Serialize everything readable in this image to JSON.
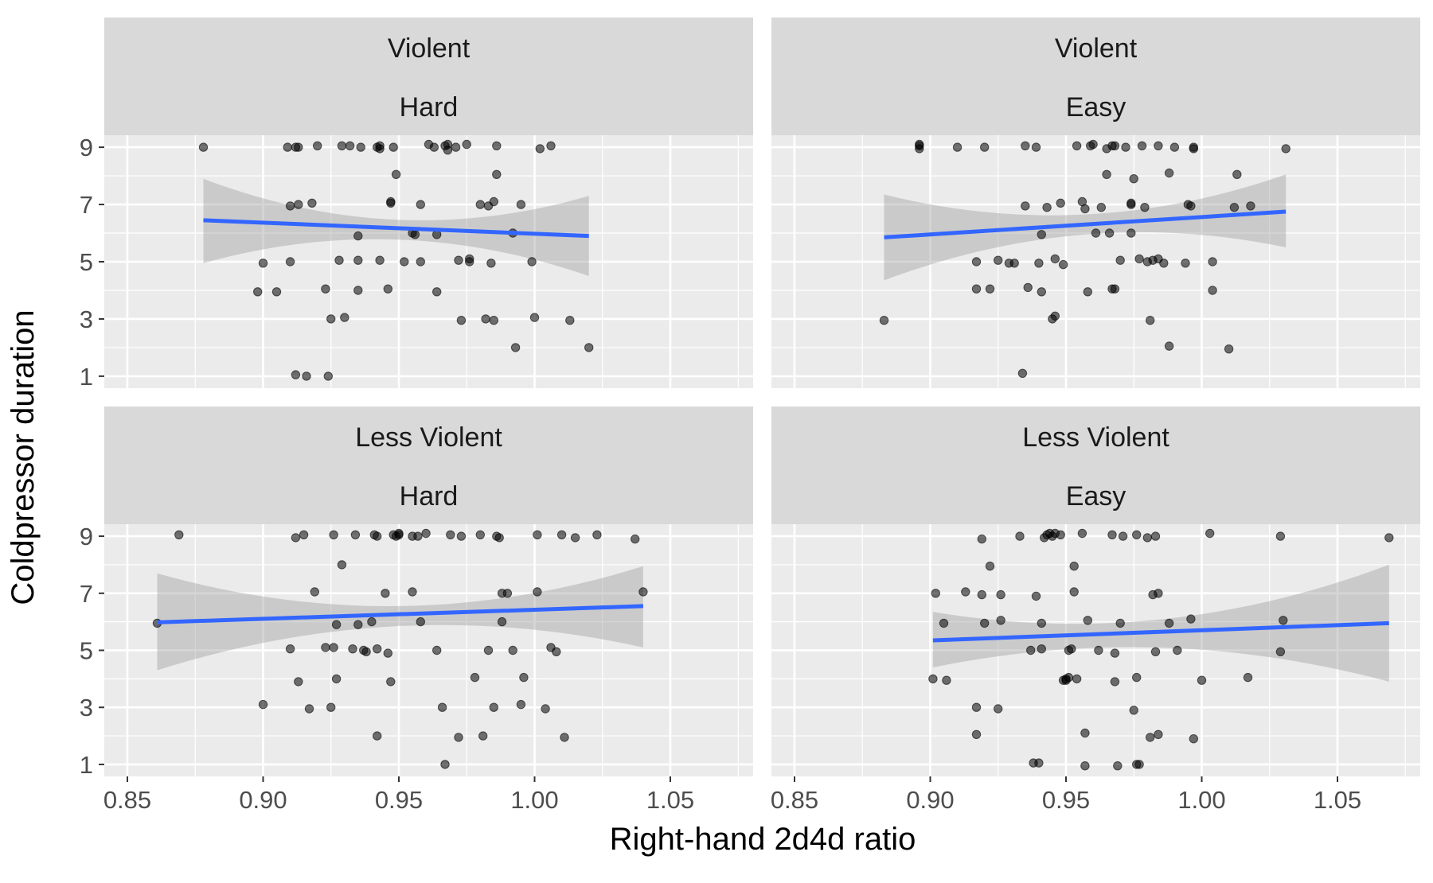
{
  "chart_data": {
    "type": "scatter",
    "xlabel": "Right-hand 2d4d ratio",
    "ylabel": "Coldpressor duration",
    "x_ticks": [
      "0.85",
      "0.90",
      "0.95",
      "1.00",
      "1.05"
    ],
    "x_tick_values": [
      0.85,
      0.9,
      0.95,
      1.0,
      1.05
    ],
    "y_ticks": [
      "1",
      "3",
      "5",
      "7",
      "9"
    ],
    "y_tick_values": [
      1,
      3,
      5,
      7,
      9
    ],
    "xlim": [
      0.8415,
      1.0805
    ],
    "ylim": [
      0.58,
      9.42
    ],
    "grid": true,
    "panels": [
      {
        "strip_top": "Violent",
        "strip_bottom": "Hard",
        "fit": {
          "x0": 0.878,
          "y0": 6.45,
          "x1": 1.02,
          "y1": 5.9,
          "lower0": 4.95,
          "upper0": 7.9,
          "lower_mid": 5.75,
          "upper_mid": 6.45,
          "x_mid": 0.955,
          "lower1": 4.5,
          "upper1": 7.3
        },
        "points": [
          [
            0.878,
            9.0
          ],
          [
            0.9,
            4.95
          ],
          [
            0.898,
            3.95
          ],
          [
            0.905,
            3.95
          ],
          [
            0.909,
            9.0
          ],
          [
            0.91,
            5.0
          ],
          [
            0.91,
            6.95
          ],
          [
            0.912,
            9.0
          ],
          [
            0.913,
            7.0
          ],
          [
            0.912,
            1.05
          ],
          [
            0.913,
            9.0
          ],
          [
            0.916,
            1.0
          ],
          [
            0.918,
            7.05
          ],
          [
            0.92,
            9.05
          ],
          [
            0.923,
            4.05
          ],
          [
            0.924,
            1.0
          ],
          [
            0.925,
            3.0
          ],
          [
            0.928,
            5.05
          ],
          [
            0.929,
            9.05
          ],
          [
            0.93,
            3.05
          ],
          [
            0.932,
            9.05
          ],
          [
            0.935,
            4.0
          ],
          [
            0.935,
            5.9
          ],
          [
            0.936,
            9.0
          ],
          [
            0.935,
            5.05
          ],
          [
            0.942,
            9.0
          ],
          [
            0.943,
            9.05
          ],
          [
            0.943,
            5.05
          ],
          [
            0.943,
            8.95
          ],
          [
            0.946,
            4.05
          ],
          [
            0.947,
            7.05
          ],
          [
            0.947,
            7.1
          ],
          [
            0.948,
            9.0
          ],
          [
            0.949,
            8.05
          ],
          [
            0.952,
            5.0
          ],
          [
            0.955,
            6.0
          ],
          [
            0.956,
            5.95
          ],
          [
            0.958,
            7.0
          ],
          [
            0.958,
            5.0
          ],
          [
            0.961,
            9.1
          ],
          [
            0.963,
            9.0
          ],
          [
            0.964,
            3.95
          ],
          [
            0.964,
            5.95
          ],
          [
            0.967,
            9.05
          ],
          [
            0.968,
            9.1
          ],
          [
            0.968,
            8.9
          ],
          [
            0.971,
            9.0
          ],
          [
            0.972,
            5.05
          ],
          [
            0.973,
            2.95
          ],
          [
            0.975,
            9.1
          ],
          [
            0.976,
            5.0
          ],
          [
            0.976,
            5.1
          ],
          [
            0.98,
            7.0
          ],
          [
            0.982,
            3.0
          ],
          [
            0.983,
            6.95
          ],
          [
            0.984,
            4.95
          ],
          [
            0.985,
            7.1
          ],
          [
            0.985,
            2.95
          ],
          [
            0.986,
            9.05
          ],
          [
            0.986,
            8.05
          ],
          [
            0.992,
            6.0
          ],
          [
            0.993,
            2.0
          ],
          [
            0.995,
            7.0
          ],
          [
            0.999,
            5.0
          ],
          [
            1.0,
            3.05
          ],
          [
            1.002,
            8.95
          ],
          [
            1.006,
            9.05
          ],
          [
            1.013,
            2.95
          ],
          [
            1.02,
            2.0
          ]
        ]
      },
      {
        "strip_top": "Violent",
        "strip_bottom": "Easy",
        "fit": {
          "x0": 0.883,
          "y0": 5.85,
          "x1": 1.031,
          "y1": 6.75,
          "lower0": 4.35,
          "upper0": 7.35,
          "lower_mid": 5.95,
          "upper_mid": 6.65,
          "x_mid": 0.957,
          "lower1": 5.5,
          "upper1": 8.05
        },
        "points": [
          [
            0.883,
            2.95
          ],
          [
            0.896,
            9.05
          ],
          [
            0.896,
            9.1
          ],
          [
            0.896,
            8.95
          ],
          [
            0.91,
            9.0
          ],
          [
            0.917,
            5.0
          ],
          [
            0.917,
            4.05
          ],
          [
            0.92,
            9.0
          ],
          [
            0.922,
            4.05
          ],
          [
            0.925,
            5.05
          ],
          [
            0.929,
            4.95
          ],
          [
            0.931,
            4.95
          ],
          [
            0.934,
            1.1
          ],
          [
            0.935,
            9.05
          ],
          [
            0.935,
            6.95
          ],
          [
            0.936,
            4.1
          ],
          [
            0.939,
            9.0
          ],
          [
            0.94,
            4.95
          ],
          [
            0.941,
            3.95
          ],
          [
            0.941,
            5.95
          ],
          [
            0.943,
            6.9
          ],
          [
            0.945,
            3.0
          ],
          [
            0.946,
            3.1
          ],
          [
            0.946,
            5.1
          ],
          [
            0.948,
            7.05
          ],
          [
            0.949,
            4.9
          ],
          [
            0.954,
            9.05
          ],
          [
            0.956,
            7.1
          ],
          [
            0.957,
            6.85
          ],
          [
            0.958,
            3.95
          ],
          [
            0.959,
            9.05
          ],
          [
            0.96,
            9.1
          ],
          [
            0.961,
            6.0
          ],
          [
            0.963,
            6.9
          ],
          [
            0.965,
            8.95
          ],
          [
            0.965,
            8.05
          ],
          [
            0.966,
            6.0
          ],
          [
            0.967,
            9.05
          ],
          [
            0.967,
            4.05
          ],
          [
            0.968,
            4.05
          ],
          [
            0.968,
            9.05
          ],
          [
            0.97,
            5.05
          ],
          [
            0.972,
            9.0
          ],
          [
            0.974,
            7.05
          ],
          [
            0.974,
            6.0
          ],
          [
            0.974,
            7.0
          ],
          [
            0.975,
            7.9
          ],
          [
            0.977,
            5.1
          ],
          [
            0.978,
            9.05
          ],
          [
            0.979,
            6.9
          ],
          [
            0.98,
            5.0
          ],
          [
            0.981,
            2.95
          ],
          [
            0.982,
            5.05
          ],
          [
            0.984,
            9.05
          ],
          [
            0.984,
            5.1
          ],
          [
            0.986,
            4.95
          ],
          [
            0.988,
            8.1
          ],
          [
            0.988,
            2.05
          ],
          [
            0.99,
            9.0
          ],
          [
            0.994,
            4.95
          ],
          [
            0.995,
            7.0
          ],
          [
            0.996,
            6.95
          ],
          [
            0.997,
            8.95
          ],
          [
            0.997,
            9.0
          ],
          [
            1.004,
            4.0
          ],
          [
            1.004,
            5.0
          ],
          [
            1.01,
            1.95
          ],
          [
            1.012,
            6.9
          ],
          [
            1.013,
            8.05
          ],
          [
            1.018,
            6.95
          ],
          [
            1.031,
            8.95
          ]
        ]
      },
      {
        "strip_top": "Less Violent",
        "strip_bottom": "Hard",
        "fit": {
          "x0": 0.861,
          "y0": 5.98,
          "x1": 1.04,
          "y1": 6.55,
          "lower0": 4.3,
          "upper0": 7.7,
          "lower_mid": 5.85,
          "upper_mid": 6.55,
          "x_mid": 0.95,
          "lower1": 5.1,
          "upper1": 7.95
        },
        "points": [
          [
            0.861,
            5.95
          ],
          [
            0.869,
            9.05
          ],
          [
            0.9,
            3.1
          ],
          [
            0.91,
            5.05
          ],
          [
            0.912,
            8.95
          ],
          [
            0.913,
            3.9
          ],
          [
            0.915,
            9.05
          ],
          [
            0.917,
            2.95
          ],
          [
            0.919,
            7.05
          ],
          [
            0.923,
            5.1
          ],
          [
            0.925,
            3.0
          ],
          [
            0.926,
            5.1
          ],
          [
            0.926,
            9.05
          ],
          [
            0.927,
            4.0
          ],
          [
            0.927,
            5.9
          ],
          [
            0.929,
            8.0
          ],
          [
            0.933,
            5.05
          ],
          [
            0.934,
            9.05
          ],
          [
            0.935,
            5.9
          ],
          [
            0.937,
            5.0
          ],
          [
            0.938,
            4.95
          ],
          [
            0.94,
            6.0
          ],
          [
            0.941,
            9.05
          ],
          [
            0.942,
            9.0
          ],
          [
            0.942,
            5.05
          ],
          [
            0.942,
            2.0
          ],
          [
            0.945,
            7.0
          ],
          [
            0.946,
            4.9
          ],
          [
            0.947,
            3.9
          ],
          [
            0.948,
            9.05
          ],
          [
            0.949,
            9.0
          ],
          [
            0.95,
            9.1
          ],
          [
            0.95,
            9.05
          ],
          [
            0.955,
            7.05
          ],
          [
            0.955,
            9.0
          ],
          [
            0.957,
            9.0
          ],
          [
            0.958,
            6.0
          ],
          [
            0.96,
            9.1
          ],
          [
            0.964,
            5.0
          ],
          [
            0.966,
            3.0
          ],
          [
            0.967,
            1.0
          ],
          [
            0.969,
            9.05
          ],
          [
            0.972,
            1.95
          ],
          [
            0.973,
            9.0
          ],
          [
            0.978,
            4.05
          ],
          [
            0.98,
            9.05
          ],
          [
            0.981,
            2.0
          ],
          [
            0.983,
            5.0
          ],
          [
            0.985,
            3.0
          ],
          [
            0.986,
            9.0
          ],
          [
            0.987,
            8.95
          ],
          [
            0.988,
            7.0
          ],
          [
            0.988,
            6.0
          ],
          [
            0.99,
            7.0
          ],
          [
            0.992,
            5.0
          ],
          [
            0.995,
            3.1
          ],
          [
            0.996,
            4.05
          ],
          [
            1.001,
            7.05
          ],
          [
            1.001,
            9.05
          ],
          [
            1.004,
            2.95
          ],
          [
            1.006,
            5.1
          ],
          [
            1.008,
            4.95
          ],
          [
            1.01,
            9.05
          ],
          [
            1.011,
            1.95
          ],
          [
            1.015,
            8.95
          ],
          [
            1.023,
            9.05
          ],
          [
            1.037,
            8.9
          ],
          [
            1.04,
            7.05
          ]
        ]
      },
      {
        "strip_top": "Less Violent",
        "strip_bottom": "Easy",
        "fit": {
          "x0": 0.901,
          "y0": 5.35,
          "x1": 1.069,
          "y1": 5.95,
          "lower0": 4.4,
          "upper0": 6.35,
          "lower_mid": 5.1,
          "upper_mid": 5.95,
          "x_mid": 0.965,
          "lower1": 3.9,
          "upper1": 8.0
        },
        "points": [
          [
            0.901,
            4.0
          ],
          [
            0.902,
            7.0
          ],
          [
            0.905,
            5.95
          ],
          [
            0.906,
            3.95
          ],
          [
            0.913,
            7.05
          ],
          [
            0.917,
            2.05
          ],
          [
            0.917,
            3.0
          ],
          [
            0.919,
            8.9
          ],
          [
            0.919,
            6.95
          ],
          [
            0.92,
            5.95
          ],
          [
            0.922,
            7.95
          ],
          [
            0.925,
            2.95
          ],
          [
            0.926,
            6.05
          ],
          [
            0.926,
            6.95
          ],
          [
            0.933,
            9.0
          ],
          [
            0.937,
            5.0
          ],
          [
            0.938,
            1.05
          ],
          [
            0.939,
            6.9
          ],
          [
            0.94,
            1.05
          ],
          [
            0.941,
            5.05
          ],
          [
            0.941,
            5.95
          ],
          [
            0.942,
            8.95
          ],
          [
            0.943,
            9.05
          ],
          [
            0.944,
            9.1
          ],
          [
            0.945,
            9.0
          ],
          [
            0.946,
            9.1
          ],
          [
            0.948,
            9.05
          ],
          [
            0.949,
            3.95
          ],
          [
            0.95,
            4.0
          ],
          [
            0.95,
            3.95
          ],
          [
            0.951,
            4.05
          ],
          [
            0.951,
            5.0
          ],
          [
            0.952,
            5.05
          ],
          [
            0.953,
            7.95
          ],
          [
            0.953,
            7.05
          ],
          [
            0.954,
            4.0
          ],
          [
            0.956,
            9.1
          ],
          [
            0.957,
            0.95
          ],
          [
            0.957,
            2.1
          ],
          [
            0.958,
            6.05
          ],
          [
            0.962,
            5.0
          ],
          [
            0.967,
            9.05
          ],
          [
            0.968,
            4.9
          ],
          [
            0.968,
            3.9
          ],
          [
            0.969,
            0.95
          ],
          [
            0.97,
            5.95
          ],
          [
            0.971,
            9.0
          ],
          [
            0.975,
            2.9
          ],
          [
            0.976,
            1.0
          ],
          [
            0.976,
            9.05
          ],
          [
            0.976,
            4.05
          ],
          [
            0.977,
            1.0
          ],
          [
            0.98,
            8.95
          ],
          [
            0.981,
            1.95
          ],
          [
            0.982,
            6.95
          ],
          [
            0.983,
            9.0
          ],
          [
            0.983,
            4.95
          ],
          [
            0.984,
            7.0
          ],
          [
            0.984,
            2.05
          ],
          [
            0.988,
            5.95
          ],
          [
            0.991,
            5.0
          ],
          [
            0.996,
            6.1
          ],
          [
            0.997,
            1.9
          ],
          [
            1.0,
            3.95
          ],
          [
            1.003,
            9.1
          ],
          [
            1.017,
            4.05
          ],
          [
            1.029,
            9.0
          ],
          [
            1.029,
            4.95
          ],
          [
            1.03,
            6.05
          ],
          [
            1.069,
            8.95
          ]
        ]
      }
    ]
  }
}
